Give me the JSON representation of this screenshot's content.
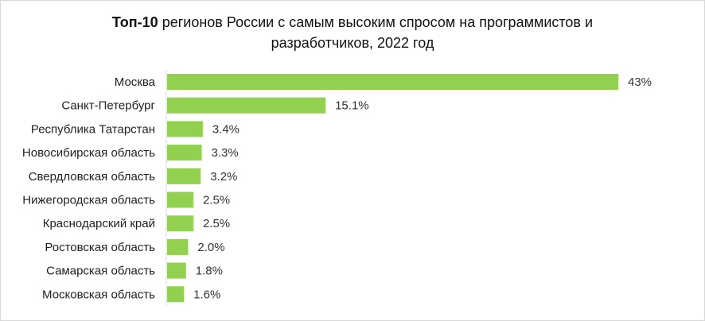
{
  "chart_data": {
    "type": "bar",
    "orientation": "horizontal",
    "title_bold": "Топ-10",
    "title_line1": "регионов России с самым высоким спросом на программистов и",
    "title_line2": "разработчиков, 2022 год",
    "categories": [
      "Москва",
      "Санкт-Петербург",
      "Республика Татарстан",
      "Новосибирская область",
      "Свердловская область",
      "Нижегородская область",
      "Краснодарский край",
      "Ростовская область",
      "Самарская область",
      "Московская область"
    ],
    "values": [
      43,
      15.1,
      3.4,
      3.3,
      3.2,
      2.5,
      2.5,
      2.0,
      1.8,
      1.6
    ],
    "value_labels": [
      "43%",
      "15.1%",
      "3.4%",
      "3.3%",
      "3.2%",
      "2.5%",
      "2.5%",
      "2.0%",
      "1.8%",
      "1.6%"
    ],
    "xlim": [
      0,
      43
    ],
    "bar_color": "#92d050",
    "axis_color": "#d9d9d9",
    "grid": false,
    "legend": "none"
  }
}
